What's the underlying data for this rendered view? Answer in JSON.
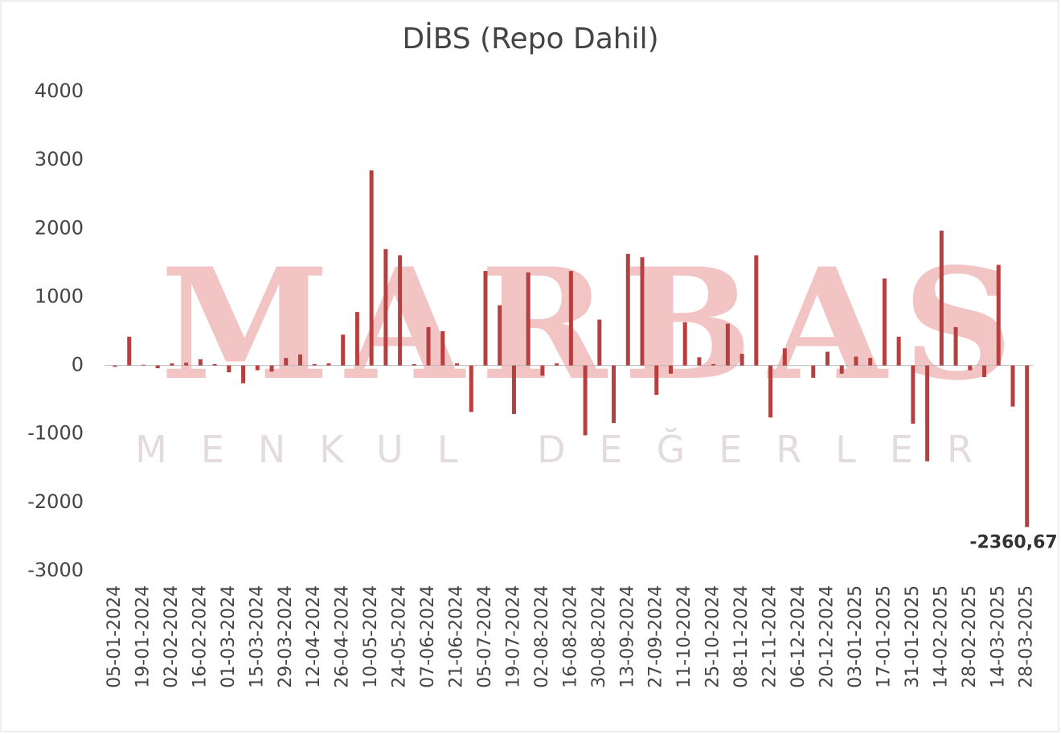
{
  "chart_data": {
    "type": "bar",
    "title": "DİBS (Repo Dahil)",
    "watermark": "MARBAS",
    "watermark_subtitle": "MENKUL DEĞERLER",
    "categories": [
      "05-01-2024",
      null,
      "19-01-2024",
      null,
      "02-02-2024",
      null,
      "16-02-2024",
      null,
      "01-03-2024",
      null,
      "15-03-2024",
      null,
      "29-03-2024",
      null,
      "12-04-2024",
      null,
      "26-04-2024",
      null,
      "10-05-2024",
      null,
      "24-05-2024",
      null,
      "07-06-2024",
      null,
      "21-06-2024",
      null,
      "05-07-2024",
      null,
      "19-07-2024",
      null,
      "02-08-2024",
      null,
      "16-08-2024",
      null,
      "30-08-2024",
      null,
      "13-09-2024",
      null,
      "27-09-2024",
      null,
      "11-10-2024",
      null,
      "25-10-2024",
      null,
      "08-11-2024",
      null,
      "22-11-2024",
      null,
      "06-12-2024",
      null,
      "20-12-2024",
      null,
      "03-01-2025",
      null,
      "17-01-2025",
      null,
      "31-01-2025",
      null,
      "14-02-2025",
      null,
      "28-02-2025",
      null,
      "14-03-2025",
      null,
      "28-03-2025"
    ],
    "values": [
      -20,
      420,
      10,
      -40,
      30,
      40,
      90,
      20,
      -100,
      -260,
      -70,
      -90,
      110,
      160,
      20,
      30,
      450,
      780,
      2850,
      1700,
      1610,
      20,
      560,
      500,
      30,
      -680,
      1380,
      880,
      -710,
      1360,
      -150,
      30,
      1380,
      -1020,
      670,
      -840,
      1630,
      1580,
      -430,
      -120,
      630,
      120,
      20,
      610,
      170,
      1610,
      -760,
      250,
      0,
      -180,
      200,
      -120,
      130,
      110,
      1270,
      420,
      -850,
      -1400,
      1970,
      560,
      -70,
      -170,
      1470,
      -600,
      -2360.67
    ],
    "value_labels": [
      null,
      null,
      null,
      null,
      null,
      null,
      null,
      null,
      null,
      null,
      null,
      null,
      null,
      null,
      null,
      null,
      null,
      null,
      null,
      null,
      null,
      null,
      null,
      null,
      null,
      null,
      null,
      null,
      null,
      null,
      null,
      null,
      null,
      null,
      null,
      null,
      null,
      null,
      null,
      null,
      null,
      null,
      null,
      null,
      null,
      null,
      null,
      null,
      null,
      null,
      null,
      null,
      null,
      null,
      null,
      null,
      null,
      null,
      null,
      null,
      null,
      null,
      null,
      null,
      "-2360,67"
    ],
    "color": "#b5403f",
    "ylim": [
      -3000,
      4000
    ],
    "yticks": [
      -3000,
      -2000,
      -1000,
      0,
      1000,
      2000,
      3000,
      4000
    ],
    "zero_line": true
  }
}
